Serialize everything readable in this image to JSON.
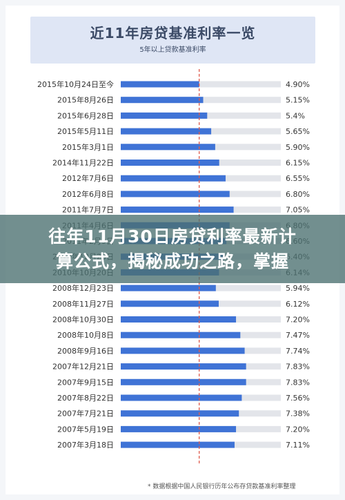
{
  "banner": {
    "title": "近11年房贷基准利率一览",
    "subtitle": "5年以上贷款基准利率"
  },
  "overlay": {
    "line1": "往年11月30日房贷利率最新计",
    "line2": "算公式，揭秘成功之路，掌握"
  },
  "footnote": "* 数据根据中国人民银行历年公布存贷款基准利率整理",
  "colors": {
    "bar": "#3f73d6",
    "track": "#e3e5ea",
    "reference": "#e05a4b",
    "text": "#333333"
  },
  "chart_data": {
    "type": "bar",
    "orientation": "horizontal",
    "categories": [
      "2015年10月24日至今",
      "2015年8月26日",
      "2015年6月28日",
      "2015年5月11日",
      "2015年3月1日",
      "2014年11月22日",
      "2012年7月6日",
      "2012年6月8日",
      "2011年7月7日",
      "2011年4月6日",
      "2011年2月9日",
      "2010年12月26日",
      "2010年10月20日",
      "2008年12月23日",
      "2008年11月27日",
      "2008年10月30日",
      "2008年10月8日",
      "2008年9月16日",
      "2007年12月21日",
      "2007年9月15日",
      "2007年8月22日",
      "2007年7月21日",
      "2007年5月19日",
      "2007年3月18日"
    ],
    "values": [
      4.9,
      5.15,
      5.4,
      5.65,
      5.9,
      6.15,
      6.55,
      6.8,
      7.05,
      6.8,
      6.6,
      6.4,
      6.14,
      5.94,
      6.12,
      7.2,
      7.47,
      7.74,
      7.83,
      7.83,
      7.56,
      7.38,
      7.2,
      7.11
    ],
    "labels": [
      "4.90%",
      "5.15%",
      "5.4%",
      "5.65%",
      "5.90%",
      "6.15%",
      "6.55%",
      "6.80%",
      "7.05%",
      "6.80%",
      "6.60%",
      "6.40%",
      "6.14%",
      "5.94%",
      "6.12%",
      "7.20%",
      "7.47%",
      "7.74%",
      "7.83%",
      "7.83%",
      "7.56%",
      "7.38%",
      "7.20%",
      "7.11%"
    ],
    "reference_value": 4.9,
    "axis_min": 0,
    "axis_max": 10,
    "grid": false,
    "legend": "none"
  }
}
